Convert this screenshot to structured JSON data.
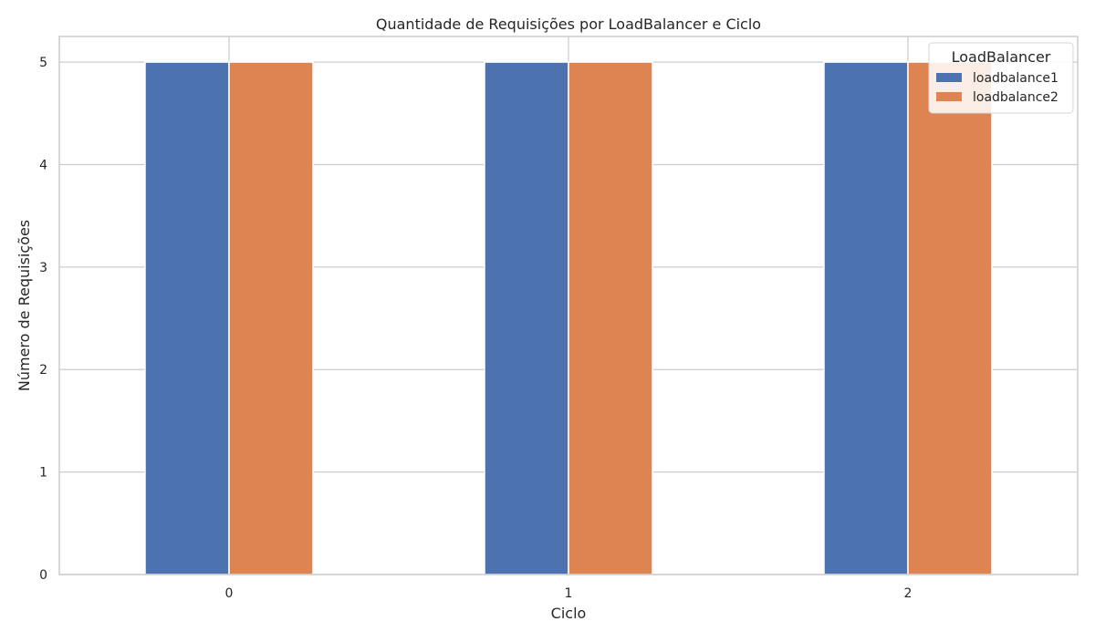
{
  "chart_data": {
    "type": "bar",
    "title": "Quantidade de Requisições por LoadBalancer e Ciclo",
    "xlabel": "Ciclo",
    "ylabel": "Número de Requisições",
    "categories": [
      "0",
      "1",
      "2"
    ],
    "series": [
      {
        "name": "loadbalance1",
        "values": [
          5,
          5,
          5
        ],
        "color": "#4c72b0"
      },
      {
        "name": "loadbalance2",
        "values": [
          5,
          5,
          5
        ],
        "color": "#dd8452"
      }
    ],
    "ylim": [
      0,
      5.25
    ],
    "yticks": [
      0,
      1,
      2,
      3,
      4,
      5
    ],
    "grid": true,
    "legend": {
      "title": "LoadBalancer",
      "placement": "top-right"
    }
  }
}
